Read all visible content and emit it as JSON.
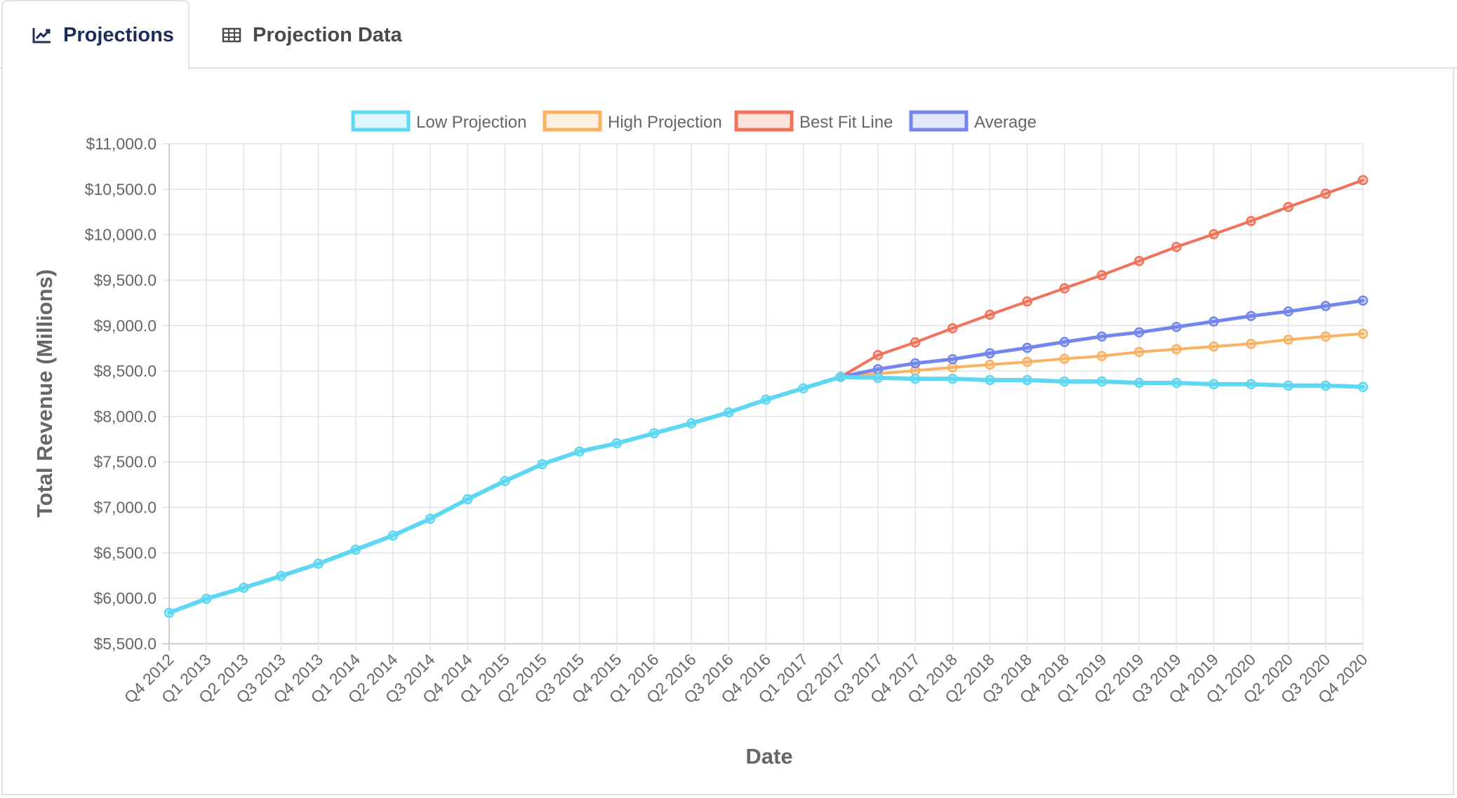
{
  "tabs": [
    {
      "label": "Projections",
      "icon": "line-chart-icon",
      "active": true
    },
    {
      "label": "Projection Data",
      "icon": "table-icon",
      "active": false
    }
  ],
  "chart_data": {
    "type": "line",
    "title": "",
    "xlabel": "Date",
    "ylabel": "Total Revenue (Millions)",
    "ylim": [
      5500,
      11000
    ],
    "y_step": 500,
    "y_tick_format": "$#,###.0",
    "grid": true,
    "legend_position": "top",
    "categories": [
      "Q4 2012",
      "Q1 2013",
      "Q2 2013",
      "Q3 2013",
      "Q4 2013",
      "Q1 2014",
      "Q2 2014",
      "Q3 2014",
      "Q4 2014",
      "Q1 2015",
      "Q2 2015",
      "Q3 2015",
      "Q4 2015",
      "Q1 2016",
      "Q2 2016",
      "Q3 2016",
      "Q4 2016",
      "Q1 2017",
      "Q2 2017",
      "Q3 2017",
      "Q4 2017",
      "Q1 2018",
      "Q2 2018",
      "Q3 2018",
      "Q4 2018",
      "Q1 2019",
      "Q2 2019",
      "Q3 2019",
      "Q4 2019",
      "Q1 2020",
      "Q2 2020",
      "Q3 2020",
      "Q4 2020"
    ],
    "series": [
      {
        "name": "Low Projection",
        "color": "#5ed7f2",
        "width": 6,
        "values": [
          5840,
          5995,
          6115,
          6245,
          6380,
          6535,
          6690,
          6875,
          7090,
          7290,
          7475,
          7615,
          7705,
          7815,
          7925,
          8045,
          8185,
          8310,
          8435,
          8425,
          8415,
          8415,
          8400,
          8400,
          8385,
          8385,
          8370,
          8370,
          8355,
          8355,
          8340,
          8340,
          8325
        ]
      },
      {
        "name": "High Projection",
        "color": "#f9b262",
        "width": 4,
        "values": [
          null,
          null,
          null,
          null,
          null,
          null,
          null,
          null,
          null,
          null,
          null,
          null,
          null,
          null,
          null,
          null,
          null,
          null,
          8435,
          8470,
          8505,
          8540,
          8570,
          8600,
          8635,
          8665,
          8710,
          8740,
          8770,
          8800,
          8845,
          8880,
          8910
        ]
      },
      {
        "name": "Best Fit Line",
        "color": "#f27259",
        "width": 4,
        "values": [
          null,
          null,
          null,
          null,
          null,
          null,
          null,
          null,
          null,
          null,
          null,
          null,
          null,
          null,
          null,
          null,
          null,
          null,
          8435,
          8675,
          8815,
          8970,
          9120,
          9265,
          9410,
          9555,
          9710,
          9865,
          10005,
          10150,
          10305,
          10450,
          10600
        ]
      },
      {
        "name": "Average",
        "color": "#7486ec",
        "width": 5,
        "values": [
          null,
          null,
          null,
          null,
          null,
          null,
          null,
          null,
          null,
          null,
          null,
          null,
          null,
          null,
          null,
          null,
          null,
          null,
          8435,
          8520,
          8585,
          8630,
          8695,
          8755,
          8820,
          8880,
          8925,
          8985,
          9045,
          9105,
          9155,
          9215,
          9275
        ]
      }
    ],
    "draw_order": [
      2,
      1,
      3,
      0
    ]
  }
}
